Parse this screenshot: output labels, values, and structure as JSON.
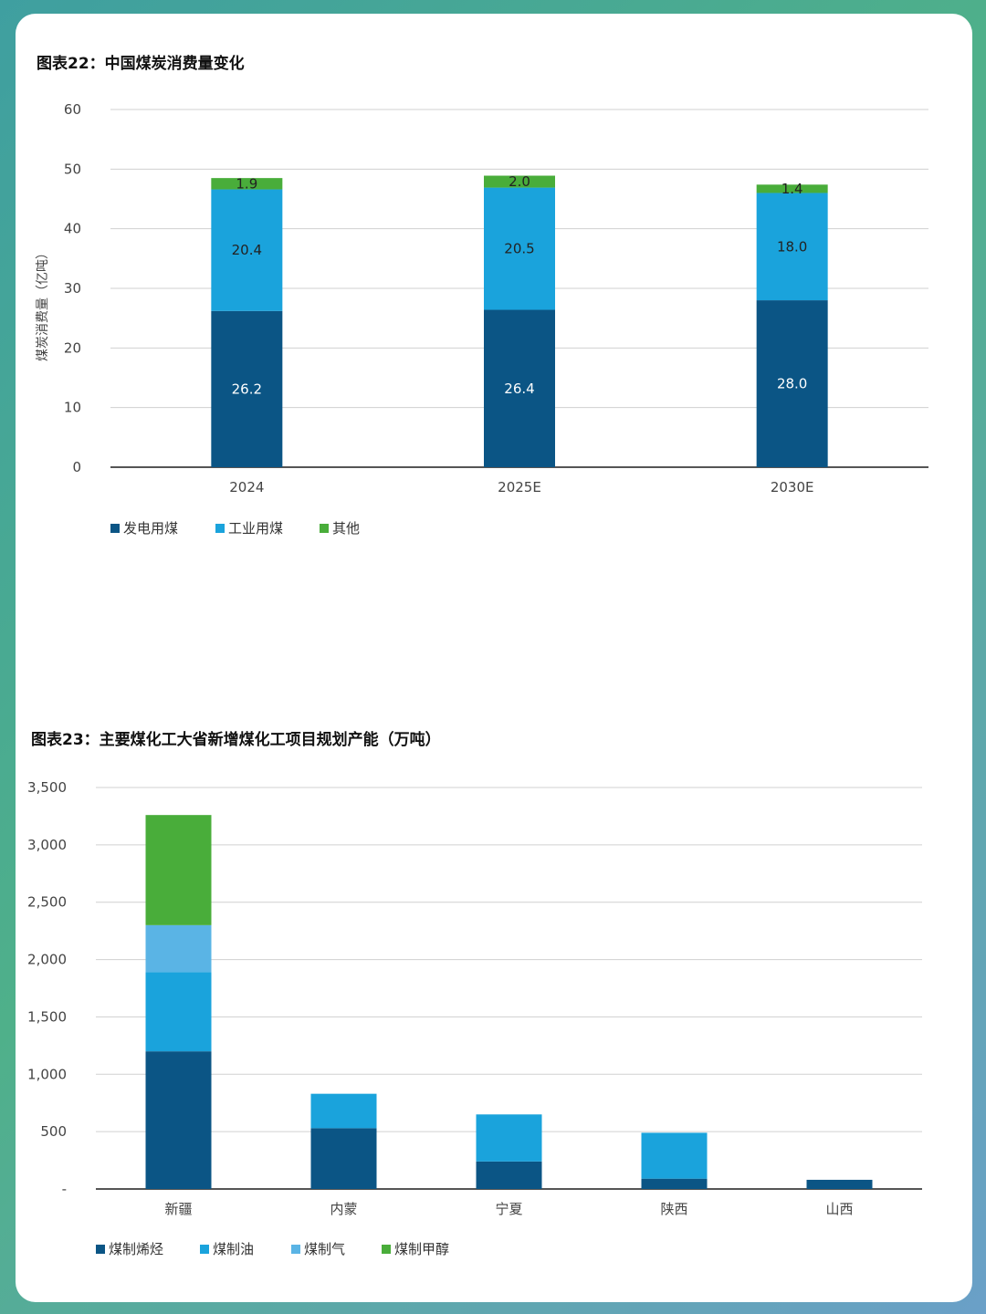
{
  "colors": {
    "dark_blue": "#0b5585",
    "mid_blue": "#1aa3dc",
    "light_blue": "#5ab4e5",
    "green": "#49ad3a"
  },
  "chart_data": [
    {
      "type": "bar",
      "stacked": true,
      "title": "图表22：中国煤炭消费量变化",
      "ylabel": "煤炭消费量（亿吨）",
      "xlabel": "",
      "ylim": [
        0,
        60
      ],
      "yticks": [
        0,
        10,
        20,
        30,
        40,
        50,
        60
      ],
      "ytick_labels": [
        "0",
        "10",
        "20",
        "30",
        "40",
        "50",
        "60"
      ],
      "categories": [
        "2024",
        "2025E",
        "2030E"
      ],
      "series": [
        {
          "name": "发电用煤",
          "color": "#0b5585",
          "values": [
            26.2,
            26.4,
            28.0
          ],
          "labels": [
            "26.2",
            "26.4",
            "28.0"
          ],
          "label_color": "#ffffff"
        },
        {
          "name": "工业用煤",
          "color": "#1aa3dc",
          "values": [
            20.4,
            20.5,
            18.0
          ],
          "labels": [
            "20.4",
            "20.5",
            "18.0"
          ],
          "label_color": "#222222"
        },
        {
          "name": "其他",
          "color": "#49ad3a",
          "values": [
            1.9,
            2.0,
            1.4
          ],
          "labels": [
            "1.9",
            "2.0",
            "1.4"
          ],
          "label_color": "#222222"
        }
      ],
      "grid": true,
      "legend_position": "bottom-left"
    },
    {
      "type": "bar",
      "stacked": true,
      "title": "图表23：主要煤化工大省新增煤化工项目规划产能（万吨）",
      "ylabel": "",
      "xlabel": "",
      "ylim": [
        0,
        3500
      ],
      "yticks": [
        0,
        500,
        1000,
        1500,
        2000,
        2500,
        3000,
        3500
      ],
      "ytick_labels": [
        "-",
        "500",
        "1,000",
        "1,500",
        "2,000",
        "2,500",
        "3,000",
        "3,500"
      ],
      "categories": [
        "新疆",
        "内蒙",
        "宁夏",
        "陕西",
        "山西"
      ],
      "series": [
        {
          "name": "煤制烯烃",
          "color": "#0b5585",
          "values": [
            1200,
            530,
            240,
            90,
            80
          ]
        },
        {
          "name": "煤制油",
          "color": "#1aa3dc",
          "values": [
            690,
            300,
            410,
            400,
            0
          ]
        },
        {
          "name": "煤制气",
          "color": "#5ab4e5",
          "values": [
            410,
            0,
            0,
            0,
            0
          ]
        },
        {
          "name": "煤制甲醇",
          "color": "#49ad3a",
          "values": [
            960,
            0,
            0,
            0,
            0
          ]
        }
      ],
      "grid": true,
      "legend_position": "bottom-left"
    }
  ]
}
